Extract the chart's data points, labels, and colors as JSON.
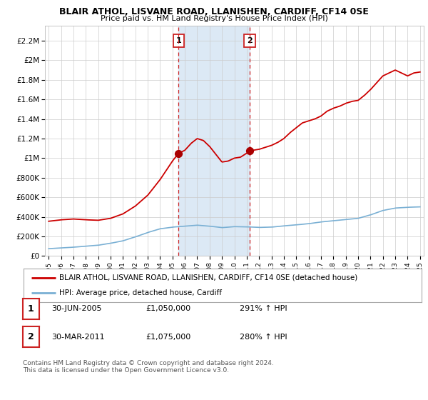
{
  "title": "BLAIR ATHOL, LISVANE ROAD, LLANISHEN, CARDIFF, CF14 0SE",
  "subtitle": "Price paid vs. HM Land Registry's House Price Index (HPI)",
  "ylabel_ticks": [
    0,
    200000,
    400000,
    600000,
    800000,
    1000000,
    1200000,
    1400000,
    1600000,
    1800000,
    2000000,
    2200000
  ],
  "ylabel_labels": [
    "£0",
    "£200K",
    "£400K",
    "£600K",
    "£800K",
    "£1M",
    "£1.2M",
    "£1.4M",
    "£1.6M",
    "£1.8M",
    "£2M",
    "£2.2M"
  ],
  "ylim": [
    0,
    2350000
  ],
  "xlim_start": 1994.7,
  "xlim_end": 2025.3,
  "sale1_x": 2005.5,
  "sale1_y": 1050000,
  "sale1_label": "1",
  "sale2_x": 2011.25,
  "sale2_y": 1075000,
  "sale2_label": "2",
  "hpi_line_color": "#7ab0d4",
  "property_line_color": "#cc0000",
  "sale_dot_color": "#aa0000",
  "vline_color": "#cc2222",
  "highlight_fill": "#dce9f5",
  "legend_property_label": "BLAIR ATHOL, LISVANE ROAD, LLANISHEN, CARDIFF, CF14 0SE (detached house)",
  "legend_hpi_label": "HPI: Average price, detached house, Cardiff",
  "footnote1": "Contains HM Land Registry data © Crown copyright and database right 2024.",
  "footnote2": "This data is licensed under the Open Government Licence v3.0.",
  "table_row1": [
    "1",
    "30-JUN-2005",
    "£1,050,000",
    "291% ↑ HPI"
  ],
  "table_row2": [
    "2",
    "30-MAR-2011",
    "£1,075,000",
    "280% ↑ HPI"
  ],
  "background_color": "#ffffff",
  "plot_bg_color": "#ffffff",
  "grid_color": "#cccccc"
}
